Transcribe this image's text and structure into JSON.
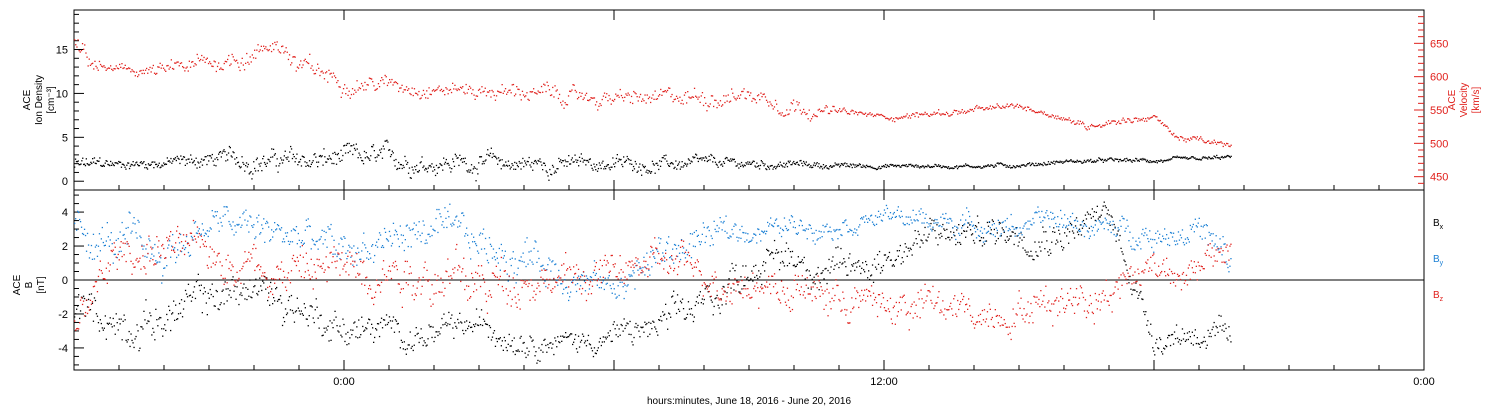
{
  "colors": {
    "black": "#000000",
    "red": "#e0201c",
    "blue": "#1a7fd4"
  },
  "xaxis": {
    "label": "hours:minutes, June 18, 2016 - June 20, 2016",
    "ticks": [
      {
        "hour": 6,
        "label": "0:00"
      },
      {
        "hour": 18,
        "label": "12:00"
      },
      {
        "hour": 30,
        "label": "0:00"
      }
    ],
    "range_hours": [
      0,
      30
    ]
  },
  "chart_data": [
    {
      "type": "scatter",
      "panel": "top",
      "ylabel_left": [
        "ACE",
        "Ion Density",
        "[cm⁻³]"
      ],
      "ylabel_right": [
        "ACE",
        "Velocity",
        "[km/s]"
      ],
      "yleft": {
        "range": [
          -1,
          19.5
        ],
        "ticks": [
          0,
          5,
          10,
          15
        ]
      },
      "yright": {
        "range": [
          430,
          700
        ],
        "ticks": [
          450,
          500,
          550,
          600,
          650
        ]
      },
      "series": [
        {
          "name": "Density",
          "color": "black",
          "axis": "left",
          "x": [
            0,
            1,
            2,
            3,
            4,
            5,
            6,
            7,
            8,
            9,
            10,
            11,
            12,
            13,
            14,
            15,
            16,
            17,
            18,
            19,
            20,
            21,
            22,
            23,
            24,
            25,
            25.7
          ],
          "y": [
            1.8,
            2.0,
            2.2,
            2.5,
            2.5,
            2.3,
            2.5,
            2.5,
            2.3,
            2.2,
            2.0,
            2.0,
            2.1,
            2.0,
            2.0,
            2.0,
            2.0,
            1.8,
            1.8,
            1.8,
            1.8,
            1.9,
            2.3,
            2.4,
            2.4,
            2.5,
            2.8
          ],
          "scatter": [
            1.2,
            0.6,
            0.8,
            1.2,
            1.5,
            1.5,
            1.6,
            1.5,
            1.4,
            1.4,
            1.3,
            1.2,
            1.0,
            1.0,
            0.8,
            0.7,
            0.5,
            0.4,
            0.3,
            0.3,
            0.3,
            0.3,
            0.3,
            0.3,
            0.3,
            0.3,
            0.3
          ]
        },
        {
          "name": "Velocity",
          "color": "red",
          "axis": "right",
          "x": [
            0,
            0.5,
            1,
            2,
            3,
            4,
            4.5,
            5,
            6,
            7,
            8,
            9,
            10,
            11,
            12,
            13,
            14,
            15,
            16,
            17,
            18,
            19,
            20,
            21,
            22,
            22.5,
            23,
            24,
            24.5,
            25,
            25.7
          ],
          "y": [
            640,
            615,
            610,
            608,
            620,
            635,
            655,
            612,
            595,
            590,
            585,
            580,
            578,
            570,
            568,
            565,
            572,
            575,
            560,
            548,
            540,
            545,
            550,
            556,
            540,
            525,
            535,
            540,
            510,
            505,
            495
          ],
          "scatter": [
            25,
            12,
            8,
            14,
            18,
            18,
            15,
            22,
            16,
            14,
            14,
            14,
            15,
            16,
            14,
            16,
            18,
            16,
            18,
            6,
            6,
            6,
            6,
            6,
            6,
            6,
            6,
            6,
            6,
            6,
            6
          ]
        }
      ]
    },
    {
      "type": "scatter",
      "panel": "bottom",
      "ylabel_left": [
        "ACE",
        "B",
        "[nT]"
      ],
      "yleft": {
        "range": [
          -5.3,
          5.3
        ],
        "ticks": [
          -4,
          -2,
          0,
          2,
          4
        ]
      },
      "series": [
        {
          "name": "Bx",
          "color": "black",
          "x": [
            0,
            1,
            2,
            3,
            4,
            5,
            6,
            7,
            8,
            9,
            10,
            11,
            12,
            13,
            14,
            15,
            16,
            16.5,
            17,
            18,
            19,
            20,
            21,
            22,
            23,
            24,
            25,
            25.7
          ],
          "y": [
            -1.5,
            -2.5,
            -2.2,
            -1.0,
            -0.5,
            -1.5,
            -2.8,
            -3.0,
            -3.3,
            -2.7,
            -3.2,
            -3.6,
            -3.3,
            -2.8,
            -1.5,
            1.0,
            1.5,
            0.8,
            0.3,
            1.5,
            2.5,
            2.8,
            3.0,
            3.0,
            3.8,
            -3.3,
            -3.0,
            -3.7
          ],
          "scatter": [
            1.2,
            1.4,
            1.4,
            1.4,
            1.4,
            1.4,
            1.2,
            1.0,
            1.0,
            1.0,
            1.0,
            0.8,
            1.0,
            1.2,
            1.4,
            1.2,
            1.2,
            1.2,
            1.4,
            1.2,
            1.2,
            1.2,
            1.2,
            1.2,
            1.0,
            1.0,
            1.0,
            1.0
          ]
        },
        {
          "name": "By",
          "color": "blue",
          "x": [
            0,
            1,
            2,
            3,
            4,
            5,
            6,
            7,
            8,
            9,
            10,
            11,
            12,
            13,
            14,
            15,
            16,
            17,
            18,
            19,
            20,
            21,
            22,
            23,
            24,
            25,
            25.7
          ],
          "y": [
            3.0,
            2.0,
            1.5,
            3.5,
            3.0,
            2.5,
            1.5,
            2.5,
            3.0,
            2.0,
            1.5,
            0.5,
            -0.5,
            1.5,
            2.5,
            3.0,
            3.2,
            3.5,
            3.8,
            3.5,
            3.3,
            3.2,
            3.5,
            3.0,
            2.8,
            3.2,
            0.5
          ],
          "scatter": [
            1.4,
            1.6,
            1.6,
            1.2,
            1.2,
            1.4,
            1.6,
            1.4,
            1.2,
            1.4,
            1.6,
            1.2,
            1.0,
            1.4,
            1.2,
            0.8,
            0.8,
            0.8,
            0.6,
            0.8,
            0.8,
            0.8,
            0.8,
            0.8,
            1.0,
            1.0,
            1.4
          ]
        },
        {
          "name": "Bz",
          "color": "red",
          "x": [
            0,
            1,
            2,
            3,
            4,
            5,
            6,
            7,
            8,
            9,
            10,
            11,
            12,
            13,
            14,
            15,
            16,
            17,
            18,
            19,
            20,
            21,
            22,
            23,
            24,
            25,
            25.7
          ],
          "y": [
            -2.5,
            1.5,
            2.0,
            1.5,
            1.2,
            0.5,
            0.8,
            1.0,
            0.5,
            -0.5,
            0.5,
            0.0,
            0.5,
            1.0,
            0.5,
            0.0,
            -0.5,
            -1.0,
            -1.5,
            -1.5,
            -2.0,
            -1.5,
            -1.0,
            -0.5,
            1.0,
            0.5,
            2.0
          ],
          "scatter": [
            1.4,
            1.6,
            1.4,
            1.4,
            1.6,
            1.8,
            1.6,
            1.8,
            1.8,
            1.8,
            1.6,
            1.4,
            1.2,
            1.2,
            1.4,
            1.4,
            1.4,
            1.4,
            1.4,
            1.4,
            1.2,
            1.4,
            1.4,
            1.4,
            1.2,
            1.0,
            1.2
          ]
        }
      ],
      "legend": [
        {
          "base": "B",
          "sub": "x",
          "color": "black"
        },
        {
          "base": "B",
          "sub": "y",
          "color": "blue"
        },
        {
          "base": "B",
          "sub": "z",
          "color": "red"
        }
      ],
      "legend_position": "right"
    }
  ]
}
